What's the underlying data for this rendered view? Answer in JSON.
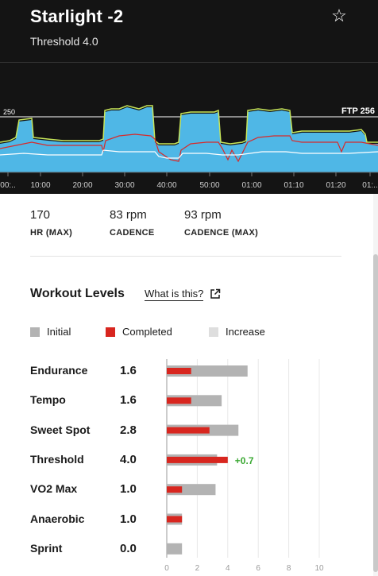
{
  "header": {
    "title": "Starlight -2",
    "subtitle": "Threshold 4.0",
    "star_icon": "star-outline-icon"
  },
  "graph": {
    "ftp_line_label": "250",
    "ftp_label": "FTP 256",
    "time_ticks": [
      "00:..",
      "10:00",
      "20:00",
      "30:00",
      "40:00",
      "50:00",
      "01:00",
      "01:10",
      "01:20",
      "01:.."
    ],
    "colors": {
      "power_fill": "#4fb7e6",
      "power_outline": "#c8e65a",
      "hr_line": "#d82a2a",
      "cadence_line": "#ffffff"
    }
  },
  "stats": [
    {
      "value": "170",
      "label": "HR (MAX)"
    },
    {
      "value": "83 rpm",
      "label": "CADENCE"
    },
    {
      "value": "93 rpm",
      "label": "CADENCE (MAX)"
    }
  ],
  "workout_levels": {
    "title": "Workout Levels",
    "link_text": "What is this?",
    "link_icon": "external-link-icon",
    "legend": [
      {
        "label": "Initial",
        "color": "#b3b3b3"
      },
      {
        "label": "Completed",
        "color": "#d8261f"
      },
      {
        "label": "Increase",
        "color": "#dedede"
      }
    ],
    "levels": [
      {
        "name": "Endurance",
        "value": "1.6"
      },
      {
        "name": "Tempo",
        "value": "1.6"
      },
      {
        "name": "Sweet Spot",
        "value": "2.8"
      },
      {
        "name": "Threshold",
        "value": "4.0"
      },
      {
        "name": "VO2 Max",
        "value": "1.0"
      },
      {
        "name": "Anaerobic",
        "value": "1.0"
      },
      {
        "name": "Sprint",
        "value": "0.0"
      }
    ]
  },
  "chart_data": {
    "type": "bar",
    "categories": [
      "Endurance",
      "Tempo",
      "Sweet Spot",
      "Threshold",
      "VO2 Max",
      "Anaerobic",
      "Sprint"
    ],
    "series": [
      {
        "name": "Initial",
        "values": [
          5.3,
          3.6,
          4.7,
          3.3,
          3.2,
          1.0,
          1.0
        ]
      },
      {
        "name": "Completed",
        "values": [
          1.6,
          1.6,
          2.8,
          4.0,
          1.0,
          1.0,
          0.0
        ]
      }
    ],
    "annotations": [
      {
        "category": "Threshold",
        "text": "+0.7",
        "color": "#3aa832"
      }
    ],
    "x_ticks": [
      "0",
      "2",
      "4",
      "6",
      "8",
      "10"
    ],
    "xlim": [
      0,
      10
    ],
    "grid": true
  }
}
